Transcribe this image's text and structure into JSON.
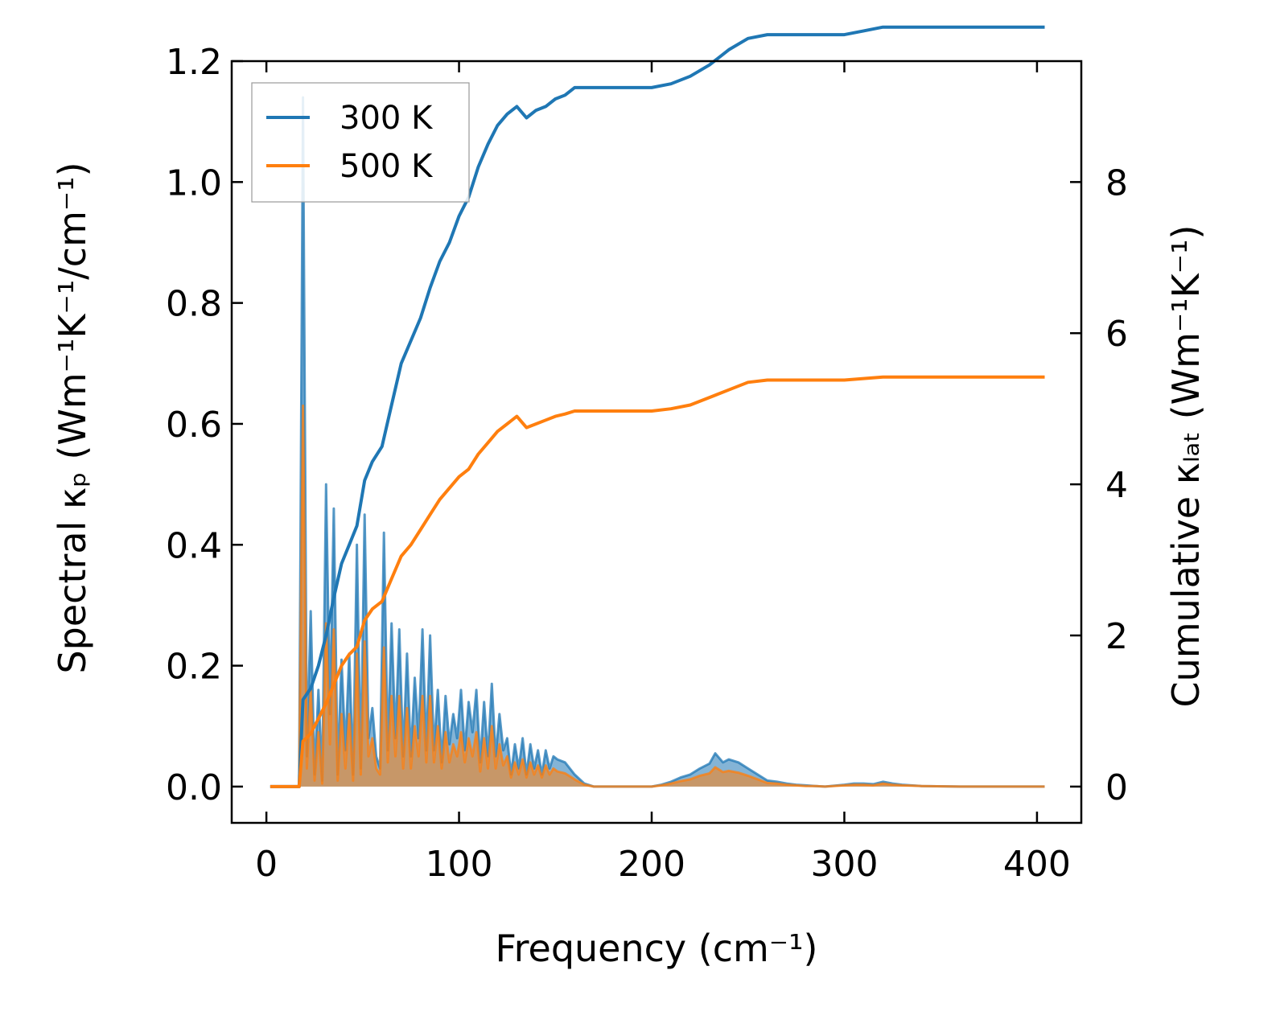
{
  "chart_data": {
    "type": "line",
    "xlabel": "Frequency (cm⁻¹)",
    "ylabel_left": "Spectral κₚ (Wm⁻¹K⁻¹/cm⁻¹)",
    "ylabel_right": "Cumulative κₗₐₜ (Wm⁻¹K⁻¹)",
    "xlim": [
      -18,
      423
    ],
    "ylim_left": [
      -0.06,
      1.2
    ],
    "ylim_right": [
      -0.48,
      9.6
    ],
    "xticks": [
      0,
      100,
      200,
      300,
      400
    ],
    "yticks_left": [
      0.0,
      0.2,
      0.4,
      0.6,
      0.8,
      1.0,
      1.2
    ],
    "yticks_right": [
      0,
      2,
      4,
      6,
      8
    ],
    "legend_position": "top-left",
    "series": [
      {
        "name": "300 K",
        "color": "#1f77b4",
        "spectral": {
          "x": [
            2,
            17,
            19,
            21,
            23,
            25,
            27,
            29,
            31,
            33,
            35,
            37,
            39,
            41,
            43,
            45,
            47,
            49,
            51,
            53,
            55,
            57,
            59,
            61,
            63,
            65,
            67,
            69,
            71,
            73,
            75,
            77,
            79,
            81,
            83,
            85,
            87,
            89,
            91,
            93,
            95,
            97,
            99,
            101,
            103,
            105,
            107,
            109,
            111,
            113,
            115,
            117,
            119,
            121,
            123,
            125,
            127,
            129,
            131,
            133,
            135,
            137,
            139,
            141,
            143,
            145,
            147,
            149,
            151,
            155,
            160,
            165,
            170,
            180,
            190,
            200,
            205,
            210,
            215,
            220,
            225,
            230,
            233,
            237,
            240,
            245,
            250,
            255,
            260,
            265,
            270,
            275,
            280,
            285,
            290,
            300,
            305,
            310,
            315,
            320,
            325,
            330,
            340,
            360,
            380,
            404
          ],
          "y": [
            0,
            0,
            1.14,
            0.05,
            0.29,
            0.02,
            0.16,
            0.01,
            0.5,
            0.12,
            0.46,
            0.02,
            0.21,
            0.06,
            0.22,
            0.02,
            0.4,
            0.03,
            0.45,
            0.08,
            0.13,
            0.05,
            0.03,
            0.42,
            0.06,
            0.27,
            0.08,
            0.26,
            0.05,
            0.22,
            0.05,
            0.18,
            0.08,
            0.26,
            0.06,
            0.25,
            0.06,
            0.16,
            0.04,
            0.15,
            0.07,
            0.12,
            0.08,
            0.16,
            0.06,
            0.14,
            0.09,
            0.16,
            0.04,
            0.14,
            0.05,
            0.17,
            0.05,
            0.12,
            0.06,
            0.08,
            0.02,
            0.07,
            0.03,
            0.08,
            0.02,
            0.07,
            0.03,
            0.06,
            0.02,
            0.06,
            0.03,
            0.05,
            0.045,
            0.04,
            0.02,
            0.005,
            0,
            0,
            0,
            0,
            0.003,
            0.008,
            0.015,
            0.02,
            0.03,
            0.038,
            0.055,
            0.04,
            0.045,
            0.04,
            0.03,
            0.02,
            0.01,
            0.008,
            0.005,
            0.003,
            0.002,
            0.001,
            0,
            0.003,
            0.005,
            0.005,
            0.004,
            0.008,
            0.005,
            0.003,
            0.001,
            0,
            0,
            0
          ]
        },
        "cumulative": {
          "x": [
            2,
            17,
            19,
            23,
            27,
            31,
            35,
            39,
            43,
            47,
            51,
            55,
            60,
            65,
            70,
            75,
            80,
            85,
            90,
            95,
            100,
            105,
            110,
            115,
            120,
            125,
            130,
            135,
            140,
            145,
            150,
            155,
            160,
            165,
            170,
            180,
            190,
            200,
            210,
            220,
            230,
            240,
            250,
            260,
            270,
            280,
            290,
            300,
            310,
            320,
            330,
            340,
            360,
            380,
            404
          ],
          "y": [
            0,
            0,
            1.15,
            1.3,
            1.6,
            2.0,
            2.5,
            2.95,
            3.2,
            3.45,
            4.05,
            4.3,
            4.5,
            5.05,
            5.6,
            5.9,
            6.2,
            6.6,
            6.95,
            7.2,
            7.55,
            7.8,
            8.2,
            8.5,
            8.75,
            8.9,
            9.0,
            8.85,
            8.95,
            9.0,
            9.1,
            9.15,
            9.25,
            9.25,
            9.25,
            9.25,
            9.25,
            9.25,
            9.3,
            9.4,
            9.55,
            9.75,
            9.9,
            9.95,
            9.95,
            9.95,
            9.95,
            9.95,
            10.0,
            10.05,
            10.05,
            10.05,
            10.05,
            10.05,
            10.05
          ]
        }
      },
      {
        "name": "500 K",
        "color": "#ff7f0e",
        "spectral": {
          "x": [
            2,
            17,
            19,
            21,
            23,
            25,
            27,
            29,
            31,
            33,
            35,
            37,
            39,
            41,
            43,
            45,
            47,
            49,
            51,
            53,
            55,
            57,
            59,
            61,
            63,
            65,
            67,
            69,
            71,
            73,
            75,
            77,
            79,
            81,
            83,
            85,
            87,
            89,
            91,
            93,
            95,
            97,
            99,
            101,
            103,
            105,
            107,
            109,
            111,
            113,
            115,
            117,
            119,
            121,
            123,
            125,
            127,
            129,
            131,
            133,
            135,
            137,
            139,
            141,
            143,
            145,
            147,
            149,
            151,
            155,
            160,
            165,
            170,
            180,
            190,
            200,
            205,
            210,
            215,
            220,
            225,
            230,
            233,
            237,
            240,
            245,
            250,
            255,
            260,
            265,
            270,
            275,
            280,
            285,
            290,
            300,
            305,
            310,
            315,
            320,
            325,
            330,
            340,
            360,
            380,
            404
          ],
          "y": [
            0,
            0,
            0.63,
            0.03,
            0.16,
            0.01,
            0.09,
            0.005,
            0.27,
            0.07,
            0.26,
            0.01,
            0.12,
            0.03,
            0.12,
            0.01,
            0.22,
            0.02,
            0.24,
            0.05,
            0.08,
            0.03,
            0.02,
            0.23,
            0.04,
            0.15,
            0.05,
            0.15,
            0.03,
            0.13,
            0.03,
            0.1,
            0.05,
            0.15,
            0.04,
            0.15,
            0.04,
            0.1,
            0.03,
            0.09,
            0.04,
            0.07,
            0.05,
            0.09,
            0.04,
            0.08,
            0.05,
            0.09,
            0.025,
            0.08,
            0.03,
            0.1,
            0.03,
            0.07,
            0.035,
            0.05,
            0.015,
            0.04,
            0.02,
            0.045,
            0.015,
            0.04,
            0.02,
            0.035,
            0.015,
            0.035,
            0.02,
            0.03,
            0.025,
            0.022,
            0.012,
            0.003,
            0,
            0,
            0,
            0,
            0.002,
            0.005,
            0.009,
            0.012,
            0.018,
            0.022,
            0.032,
            0.024,
            0.026,
            0.023,
            0.018,
            0.012,
            0.006,
            0.005,
            0.003,
            0.002,
            0.001,
            0.001,
            0,
            0.002,
            0.003,
            0.003,
            0.002,
            0.005,
            0.003,
            0.002,
            0.001,
            0,
            0,
            0
          ]
        },
        "cumulative": {
          "x": [
            2,
            17,
            19,
            23,
            27,
            31,
            35,
            39,
            43,
            47,
            51,
            55,
            60,
            65,
            70,
            75,
            80,
            85,
            90,
            95,
            100,
            105,
            110,
            115,
            120,
            125,
            130,
            135,
            140,
            145,
            150,
            155,
            160,
            165,
            170,
            180,
            190,
            200,
            210,
            220,
            230,
            240,
            250,
            260,
            270,
            280,
            290,
            300,
            310,
            320,
            330,
            340,
            360,
            380,
            404
          ],
          "y": [
            0,
            0,
            0.6,
            0.7,
            0.9,
            1.1,
            1.35,
            1.6,
            1.75,
            1.85,
            2.2,
            2.35,
            2.45,
            2.75,
            3.05,
            3.2,
            3.4,
            3.6,
            3.8,
            3.95,
            4.1,
            4.2,
            4.4,
            4.55,
            4.7,
            4.8,
            4.9,
            4.75,
            4.8,
            4.85,
            4.9,
            4.93,
            4.97,
            4.97,
            4.97,
            4.97,
            4.97,
            4.97,
            5.0,
            5.05,
            5.15,
            5.25,
            5.35,
            5.38,
            5.38,
            5.38,
            5.38,
            5.38,
            5.4,
            5.42,
            5.42,
            5.42,
            5.42,
            5.42,
            5.42
          ]
        }
      }
    ]
  }
}
